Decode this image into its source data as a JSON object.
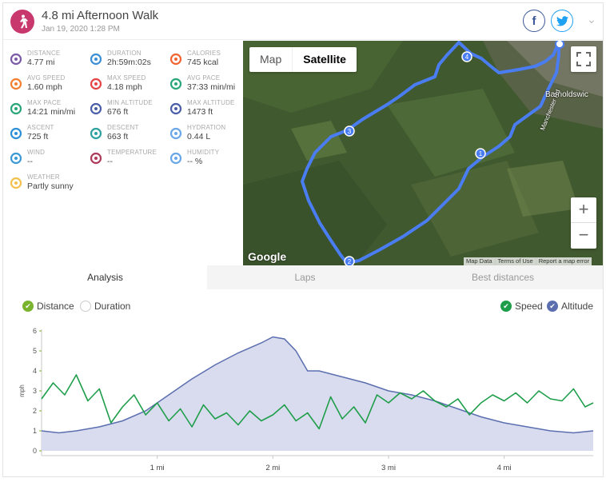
{
  "header": {
    "title": "4.8 mi Afternoon Walk",
    "subtitle": "Jan 19, 2020 1:28 PM",
    "facebook_icon": "facebook-icon",
    "twitter_icon": "twitter-icon"
  },
  "stats": [
    {
      "label": "DISTANCE",
      "value": "4.77 mi",
      "icon": "distance-icon",
      "color": "#7b5aa6"
    },
    {
      "label": "DURATION",
      "value": "2h:59m:02s",
      "icon": "stopwatch-icon",
      "color": "#3b8fd6"
    },
    {
      "label": "CALORIES",
      "value": "745 kcal",
      "icon": "flame-icon",
      "color": "#f0642f"
    },
    {
      "label": "AVG SPEED",
      "value": "1.60 mph",
      "icon": "speed-gauge-icon",
      "color": "#f08030"
    },
    {
      "label": "MAX SPEED",
      "value": "4.18 mph",
      "icon": "speed-gauge-icon",
      "color": "#e64545"
    },
    {
      "label": "AVG PACE",
      "value": "37:33 min/mi",
      "icon": "pace-gauge-icon",
      "color": "#2aa67a"
    },
    {
      "label": "MAX PACE",
      "value": "14:21 min/mi",
      "icon": "pace-gauge-icon",
      "color": "#2aa67a"
    },
    {
      "label": "MIN ALTITUDE",
      "value": "676 ft",
      "icon": "mountain-icon",
      "color": "#4a5fa8"
    },
    {
      "label": "MAX ALTITUDE",
      "value": "1473 ft",
      "icon": "mountain-icon",
      "color": "#4a5fa8"
    },
    {
      "label": "ASCENT",
      "value": "725 ft",
      "icon": "ascent-icon",
      "color": "#2d8fd5"
    },
    {
      "label": "DESCENT",
      "value": "663 ft",
      "icon": "descent-icon",
      "color": "#2ea0a0"
    },
    {
      "label": "HYDRATION",
      "value": "0.44 L",
      "icon": "water-drops-icon",
      "color": "#6aa7e8"
    },
    {
      "label": "WIND",
      "value": "--",
      "icon": "wind-icon",
      "color": "#3b9ad6"
    },
    {
      "label": "TEMPERATURE",
      "value": "--",
      "icon": "thermometer-icon",
      "color": "#b03a5a"
    },
    {
      "label": "HUMIDITY",
      "value": "-- %",
      "icon": "humidity-drops-icon",
      "color": "#6aa7e8"
    },
    {
      "label": "WEATHER",
      "value": "Partly sunny",
      "icon": "partly-sunny-icon",
      "color": "#f2c14e"
    }
  ],
  "map": {
    "toggle_map": "Map",
    "toggle_satellite": "Satellite",
    "town_label": "Barnoldswic",
    "street_label": "Manchester Rd",
    "google_logo": "Google",
    "footer": [
      "Map Data",
      "Terms of Use",
      "Report a map error"
    ],
    "zoom_in": "+",
    "zoom_out": "−",
    "markers": [
      "1",
      "2",
      "3",
      "4"
    ],
    "route_color": "#4a7df2"
  },
  "tabs": {
    "analysis": "Analysis",
    "laps": "Laps",
    "best_distances": "Best distances"
  },
  "legend": {
    "distance": "Distance",
    "duration": "Duration",
    "speed": "Speed",
    "altitude": "Altitude",
    "distance_color": "#7ab32e",
    "speed_color": "#1e9e4a",
    "altitude_color": "#5b6fb0"
  },
  "chart_data": {
    "type": "area",
    "ylabel": "mph",
    "y_ticks": [
      "0",
      "1",
      "2",
      "3",
      "4",
      "5",
      "6"
    ],
    "ylim": [
      0,
      6
    ],
    "x_ticks": [
      "1 mi",
      "2 mi",
      "3 mi",
      "4 mi"
    ],
    "xlim": [
      0,
      4.77
    ],
    "series": [
      {
        "name": "Altitude",
        "color": "#5b6fb0",
        "x": [
          0,
          0.15,
          0.3,
          0.5,
          0.7,
          0.9,
          1.1,
          1.3,
          1.5,
          1.7,
          1.9,
          2.0,
          2.1,
          2.2,
          2.3,
          2.4,
          2.6,
          2.8,
          3.0,
          3.2,
          3.4,
          3.6,
          3.8,
          4.0,
          4.2,
          4.4,
          4.6,
          4.77
        ],
        "values": [
          1.0,
          0.9,
          1.0,
          1.2,
          1.5,
          2.0,
          2.8,
          3.6,
          4.3,
          4.9,
          5.4,
          5.7,
          5.6,
          5.0,
          4.0,
          4.0,
          3.7,
          3.4,
          3.0,
          2.8,
          2.5,
          2.1,
          1.7,
          1.4,
          1.2,
          1.0,
          0.9,
          1.0
        ]
      },
      {
        "name": "Speed",
        "color": "#1e9e4a",
        "x": [
          0,
          0.1,
          0.2,
          0.3,
          0.4,
          0.5,
          0.6,
          0.7,
          0.8,
          0.9,
          1.0,
          1.1,
          1.2,
          1.3,
          1.4,
          1.5,
          1.6,
          1.7,
          1.8,
          1.9,
          2.0,
          2.1,
          2.2,
          2.3,
          2.4,
          2.5,
          2.6,
          2.7,
          2.8,
          2.9,
          3.0,
          3.1,
          3.2,
          3.3,
          3.4,
          3.5,
          3.6,
          3.7,
          3.8,
          3.9,
          4.0,
          4.1,
          4.2,
          4.3,
          4.4,
          4.5,
          4.6,
          4.7,
          4.77
        ],
        "values": [
          2.6,
          3.4,
          2.8,
          3.8,
          2.5,
          3.1,
          1.4,
          2.2,
          2.8,
          1.8,
          2.4,
          1.5,
          2.1,
          1.2,
          2.3,
          1.6,
          1.9,
          1.3,
          2.0,
          1.5,
          1.8,
          2.3,
          1.5,
          1.9,
          1.1,
          2.7,
          1.6,
          2.2,
          1.4,
          2.8,
          2.4,
          2.9,
          2.6,
          3.0,
          2.5,
          2.2,
          2.6,
          1.8,
          2.4,
          2.8,
          2.5,
          2.9,
          2.4,
          3.0,
          2.6,
          2.5,
          3.1,
          2.2,
          2.4
        ]
      }
    ]
  }
}
